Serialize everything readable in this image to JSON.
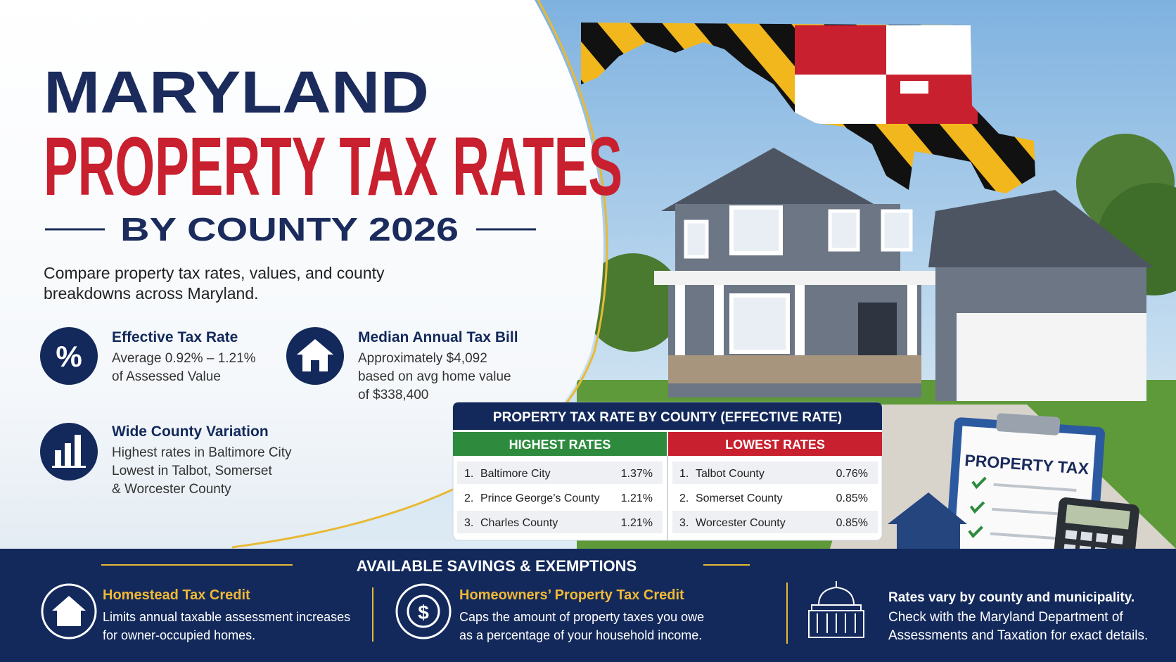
{
  "header": {
    "title_line1": "MARYLAND",
    "title_line2": "PROPERTY TAX RATES",
    "title_line3": "BY COUNTY 2026",
    "intro": [
      "Compare property tax rates, values, and county",
      "breakdowns across Maryland."
    ]
  },
  "stats": [
    {
      "icon": "%",
      "title": "Effective Tax Rate",
      "lines": [
        "Average 0.92% – 1.21%",
        "of Assessed Value"
      ]
    },
    {
      "title": "Median Annual Tax Bill",
      "lines": [
        "Approximately $4,092",
        "based on avg home value",
        "of $338,400"
      ]
    },
    {
      "title": "Wide County Variation",
      "lines": [
        "Highest rates in Baltimore City",
        "Lowest in Talbot, Somerset",
        "& Worcester County"
      ]
    }
  ],
  "table": {
    "title": "PROPERTY TAX RATE BY COUNTY (EFFECTIVE RATE)",
    "highest": {
      "heading": "HIGHEST RATES",
      "rows": [
        [
          "1.",
          "Baltimore City",
          "1.37%"
        ],
        [
          "2.",
          "Prince George’s County",
          "1.21%"
        ],
        [
          "3.",
          "Charles County",
          "1.21%"
        ]
      ]
    },
    "lowest": {
      "heading": "LOWEST RATES",
      "rows": [
        [
          "1.",
          "Talbot County",
          "0.76%"
        ],
        [
          "2.",
          "Somerset County",
          "0.85%"
        ],
        [
          "3.",
          "Worcester County",
          "0.85%"
        ]
      ]
    }
  },
  "clipboard": "PROPERTY TAX",
  "savings": {
    "heading": "AVAILABLE SAVINGS & EXEMPTIONS",
    "items": [
      {
        "title": "Homestead Tax Credit",
        "lines": [
          "Limits annual taxable assessment increases",
          "for owner-occupied homes."
        ]
      },
      {
        "icon": "$",
        "title": "Homeowners’ Property Tax Credit",
        "lines": [
          "Caps the amount of property taxes you owe",
          "as a percentage of your household income."
        ]
      }
    ],
    "note": {
      "title": "Rates vary by county and municipality.",
      "lines": [
        "Check with the Maryland Department of",
        "Assessments and Taxation for exact details."
      ]
    }
  }
}
